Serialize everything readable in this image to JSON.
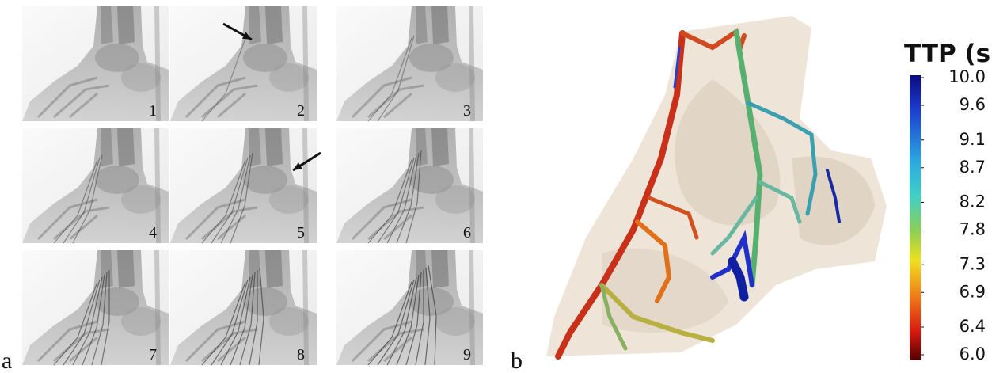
{
  "panel_a": {
    "label": "a",
    "frames": [
      1,
      2,
      3,
      4,
      5,
      6,
      7,
      8,
      9
    ]
  },
  "panel_b": {
    "label": "b"
  },
  "colorbar": {
    "title": "TTP (s)",
    "ticks": [
      {
        "value": 10,
        "label": "10.0"
      },
      9.6,
      9.1,
      8.7,
      8.2,
      7.8,
      7.3,
      6.9,
      6.4,
      {
        "value": 6,
        "label": "6.0"
      }
    ]
  }
}
